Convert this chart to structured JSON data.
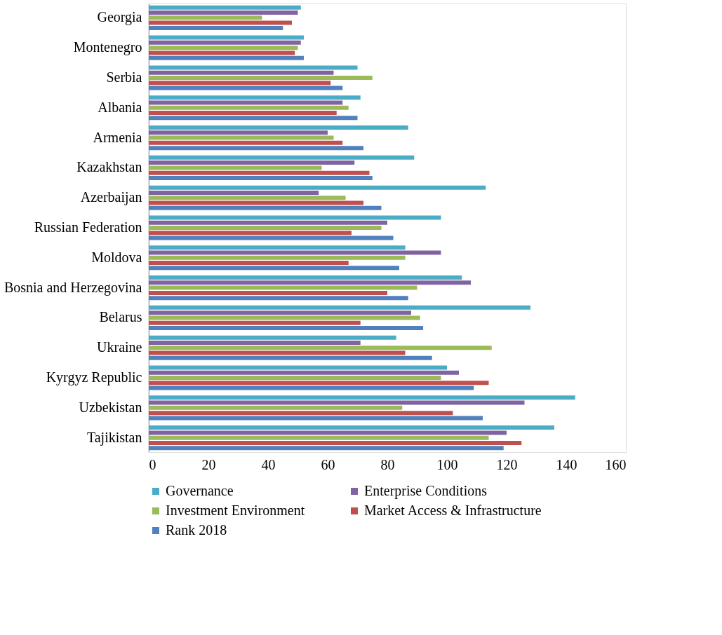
{
  "chart_data": {
    "type": "bar",
    "orientation": "horizontal",
    "categories": [
      "Georgia",
      "Montenegro",
      "Serbia",
      "Albania",
      "Armenia",
      "Kazakhstan",
      "Azerbaijan",
      "Russian Federation",
      "Moldova",
      "Bosnia and Herzegovina",
      "Belarus",
      "Ukraine",
      "Kyrgyz Republic",
      "Uzbekistan",
      "Tajikistan"
    ],
    "series": [
      {
        "name": "Governance",
        "color": "#4bacc6",
        "values": [
          51,
          52,
          70,
          71,
          87,
          89,
          113,
          98,
          86,
          105,
          128,
          83,
          100,
          143,
          136
        ]
      },
      {
        "name": "Enterprise Conditions",
        "color": "#8064a2",
        "values": [
          50,
          51,
          62,
          65,
          60,
          69,
          57,
          80,
          98,
          108,
          88,
          71,
          104,
          126,
          120
        ]
      },
      {
        "name": "Investment Environment",
        "color": "#9bbb59",
        "values": [
          38,
          50,
          75,
          67,
          62,
          58,
          66,
          78,
          86,
          90,
          91,
          115,
          98,
          85,
          114
        ]
      },
      {
        "name": "Market Access & Infrastructure",
        "color": "#c0504d",
        "values": [
          48,
          49,
          61,
          63,
          65,
          74,
          72,
          68,
          67,
          80,
          71,
          86,
          114,
          102,
          125
        ]
      },
      {
        "name": "Rank 2018",
        "color": "#4f81bd",
        "values": [
          45,
          52,
          65,
          70,
          72,
          75,
          78,
          82,
          84,
          87,
          92,
          95,
          109,
          112,
          119
        ]
      }
    ],
    "xlim": [
      0,
      160
    ],
    "xticks": [
      0,
      20,
      40,
      60,
      80,
      100,
      120,
      140,
      160
    ],
    "grid": false,
    "legend": "bottom"
  }
}
